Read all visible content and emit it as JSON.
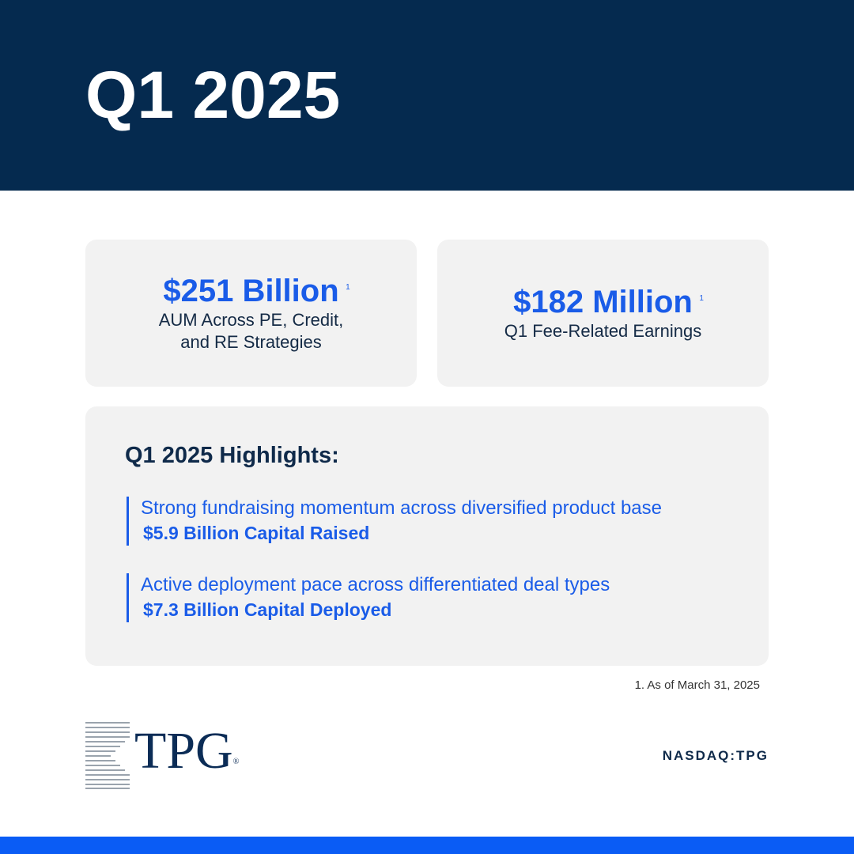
{
  "header": {
    "title": "Q1 2025"
  },
  "stats": [
    {
      "value": "$251 Billion",
      "note": "1",
      "label_lines": [
        "AUM Across PE, Credit,",
        "and RE Strategies"
      ]
    },
    {
      "value": "$182 Million",
      "note": "1",
      "label_lines": [
        "Q1 Fee-Related Earnings"
      ]
    }
  ],
  "highlights": {
    "title": "Q1 2025 Highlights:",
    "items": [
      {
        "text": "Strong fundraising momentum across diversified product base",
        "figure": "$5.9 Billion Capital Raised"
      },
      {
        "text": "Active deployment pace across differentiated deal types",
        "figure": "$7.3 Billion Capital Deployed"
      }
    ]
  },
  "footnote": "1. As of March 31, 2025",
  "logo": {
    "text": "TPG",
    "mark": "®"
  },
  "ticker": "NASDAQ:TPG"
}
